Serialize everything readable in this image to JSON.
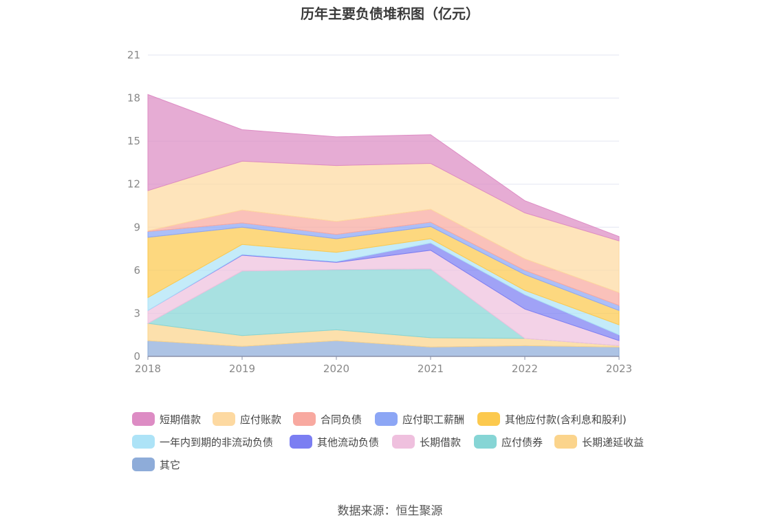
{
  "chart_data": {
    "type": "area",
    "stacked": true,
    "title": "历年主要负债堆积图（亿元）",
    "categories": [
      "2018",
      "2019",
      "2020",
      "2021",
      "2022",
      "2023"
    ],
    "ylim": [
      0,
      21
    ],
    "yticks": [
      0,
      3,
      6,
      9,
      12,
      15,
      18,
      21
    ],
    "grid": true,
    "legend_position": "bottom",
    "source": "数据来源：恒生聚源",
    "series": [
      {
        "name": "其它",
        "color": "#8eacd9",
        "values": [
          1.1,
          0.7,
          1.1,
          0.65,
          0.75,
          0.65
        ]
      },
      {
        "name": "长期递延收益",
        "color": "#fbd48c",
        "values": [
          1.2,
          0.75,
          0.75,
          0.65,
          0.5,
          0.1
        ]
      },
      {
        "name": "应付债券",
        "color": "#86d5d5",
        "values": [
          0.0,
          4.5,
          4.2,
          4.8,
          0.0,
          0.0
        ]
      },
      {
        "name": "长期借款",
        "color": "#efc0de",
        "values": [
          0.9,
          1.1,
          0.5,
          1.3,
          2.05,
          0.35
        ]
      },
      {
        "name": "其他流动负债",
        "color": "#7b7ef2",
        "values": [
          0.0,
          0.05,
          0.05,
          0.5,
          1.0,
          0.4
        ]
      },
      {
        "name": "一年内到期的非流动负债",
        "color": "#ade3f7",
        "values": [
          0.9,
          0.7,
          0.65,
          0.3,
          0.3,
          0.7
        ]
      },
      {
        "name": "其他应付款(含利息和股利)",
        "color": "#fcc94e",
        "values": [
          4.2,
          1.2,
          0.95,
          0.85,
          1.1,
          1.0
        ]
      },
      {
        "name": "应付职工薪酬",
        "color": "#8ca6f5",
        "values": [
          0.4,
          0.3,
          0.3,
          0.3,
          0.3,
          0.35
        ]
      },
      {
        "name": "合同负债",
        "color": "#f8a9a0",
        "values": [
          0.05,
          0.9,
          0.9,
          0.9,
          0.8,
          0.9
        ]
      },
      {
        "name": "应付账款",
        "color": "#fdd9a1",
        "values": [
          2.8,
          3.4,
          3.9,
          3.2,
          3.2,
          3.6
        ]
      },
      {
        "name": "短期借款",
        "color": "#dd8cc4",
        "values": [
          6.7,
          2.2,
          2.0,
          2.0,
          0.85,
          0.3
        ]
      }
    ],
    "legend_order": [
      "短期借款",
      "应付账款",
      "合同负债",
      "应付职工薪酬",
      "其他应付款(含利息和股利)",
      "一年内到期的非流动负债",
      "其他流动负债",
      "长期借款",
      "应付债券",
      "长期递延收益",
      "其它"
    ]
  }
}
